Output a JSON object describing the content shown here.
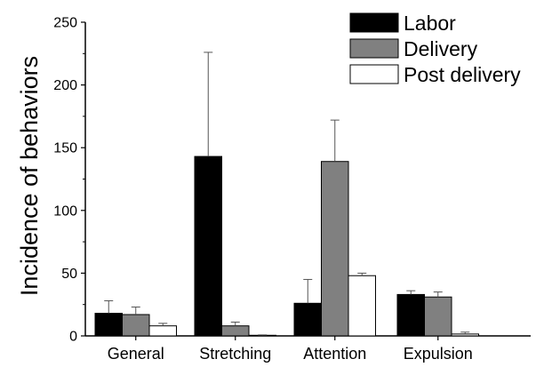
{
  "chart_data": {
    "type": "bar",
    "title": "",
    "xlabel": "",
    "ylabel": "Incidence of behaviors",
    "ylim": [
      0,
      250
    ],
    "yticks": [
      0,
      50,
      100,
      150,
      200,
      250
    ],
    "categories": [
      "General",
      "Stretching",
      "Attention",
      "Expulsion"
    ],
    "series": [
      {
        "name": "Labor",
        "values": [
          18,
          143,
          26,
          33
        ],
        "errors": [
          10,
          83,
          19,
          3
        ],
        "color": "#000000"
      },
      {
        "name": "Delivery",
        "values": [
          17,
          8,
          139,
          31
        ],
        "errors": [
          6,
          3,
          33,
          4
        ],
        "color": "#808080"
      },
      {
        "name": "Post delivery",
        "values": [
          8,
          0.5,
          48,
          1.5
        ],
        "errors": [
          2,
          0.3,
          2,
          1.5
        ],
        "color": "#ffffff"
      }
    ],
    "legend_position": "top-right",
    "grid": false,
    "error_bars": "upper"
  }
}
